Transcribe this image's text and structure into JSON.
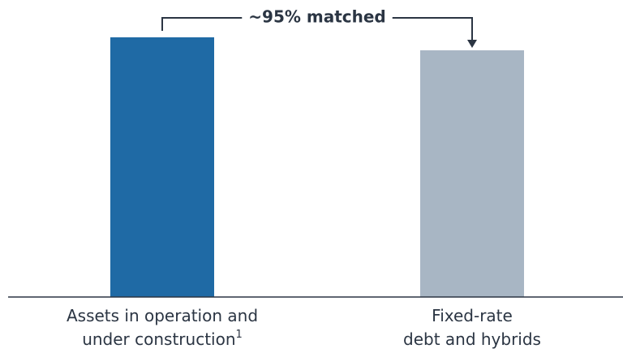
{
  "chart_data": {
    "type": "bar",
    "annotation": "~95% matched",
    "categories": [
      [
        "Assets in operation and",
        "under construction"
      ],
      [
        "Fixed-rate",
        "debt and hybrids"
      ]
    ],
    "category_superscripts": [
      "1",
      null
    ],
    "values": [
      100,
      95
    ],
    "colors": [
      "#1f6aa5",
      "#a8b6c4"
    ],
    "ylim": [
      0,
      100
    ]
  }
}
